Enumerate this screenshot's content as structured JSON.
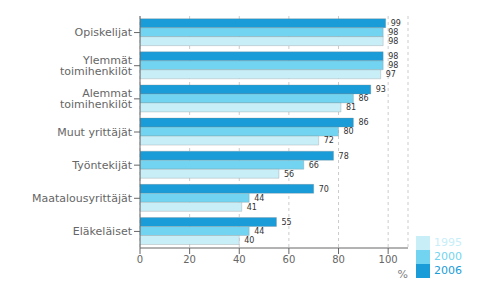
{
  "chart_data": {
    "type": "bar",
    "orientation": "horizontal",
    "categories": [
      "Opiskelijat",
      "Ylemmät toimihenkilöt",
      "Alemmat toimihenkilöt",
      "Muut yrittäjät",
      "Työntekijät",
      "Maatalousyrittäjät",
      "Eläkeläiset"
    ],
    "series": [
      {
        "name": "2006",
        "color": "#1a9cd8",
        "values": [
          99,
          98,
          93,
          86,
          78,
          70,
          55
        ]
      },
      {
        "name": "2000",
        "color": "#72d4f0",
        "values": [
          98,
          98,
          86,
          80,
          66,
          44,
          44
        ]
      },
      {
        "name": "1995",
        "color": "#c8eef8",
        "values": [
          98,
          97,
          81,
          72,
          56,
          41,
          40
        ]
      }
    ],
    "xlabel": "%",
    "xlim": [
      0,
      108
    ],
    "xticks": [
      0,
      20,
      40,
      60,
      80,
      100
    ],
    "grid": true,
    "legend": "lower right",
    "data_labels": true
  }
}
